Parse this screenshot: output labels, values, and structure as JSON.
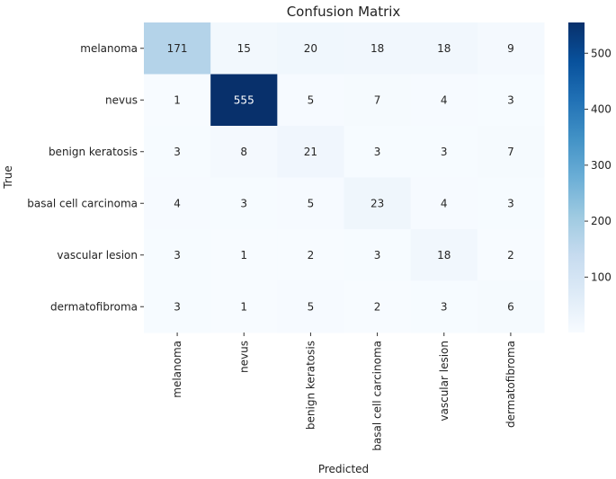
{
  "chart_data": {
    "type": "heatmap",
    "title": "Confusion Matrix",
    "xlabel": "Predicted",
    "ylabel": "True",
    "x_categories": [
      "melanoma",
      "nevus",
      "benign keratosis",
      "basal cell carcinoma",
      "vascular lesion",
      "dermatofibroma"
    ],
    "y_categories": [
      "melanoma",
      "nevus",
      "benign keratosis",
      "basal cell carcinoma",
      "vascular lesion",
      "dermatofibroma"
    ],
    "values": [
      [
        171,
        15,
        20,
        18,
        18,
        9
      ],
      [
        1,
        555,
        5,
        7,
        4,
        3
      ],
      [
        3,
        8,
        21,
        3,
        3,
        7
      ],
      [
        4,
        3,
        5,
        23,
        4,
        3
      ],
      [
        3,
        1,
        2,
        3,
        18,
        2
      ],
      [
        3,
        1,
        5,
        2,
        3,
        6
      ]
    ],
    "colormap": "Blues",
    "colorbar": {
      "range": [
        1,
        555
      ],
      "ticks": [
        100,
        200,
        300,
        400,
        500
      ],
      "colors": [
        "#f7fbff",
        "#deebf7",
        "#c6dbef",
        "#9ecae1",
        "#6baed6",
        "#4292c6",
        "#2171b5",
        "#08519c",
        "#08306b"
      ]
    },
    "annotations_color_dark": "#262626",
    "annotations_color_light": "#ffffff",
    "grid": false
  }
}
